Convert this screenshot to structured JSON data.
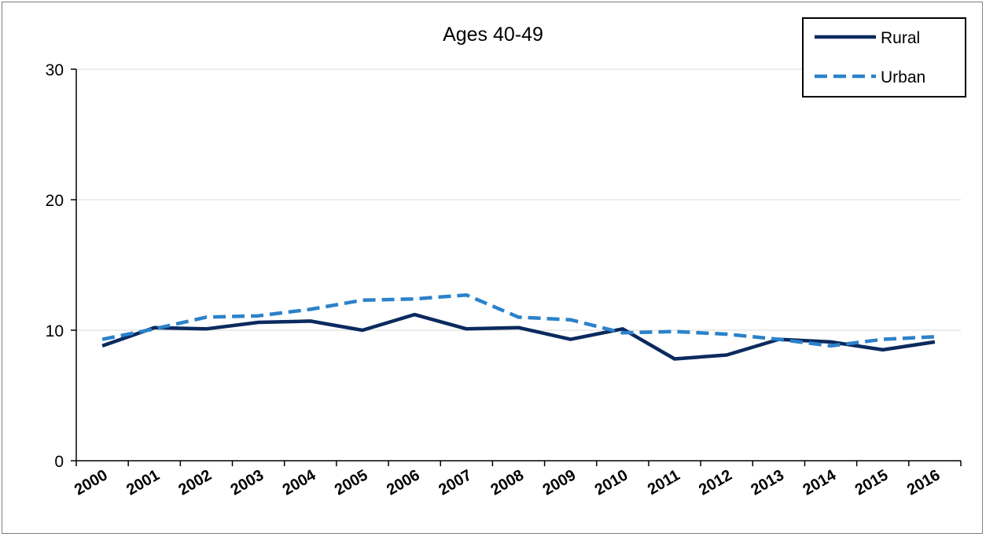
{
  "chart_data": {
    "type": "line",
    "title": "Ages 40-49",
    "xlabel": "",
    "ylabel": "",
    "categories": [
      "2000",
      "2001",
      "2002",
      "2003",
      "2004",
      "2005",
      "2006",
      "2007",
      "2008",
      "2009",
      "2010",
      "2011",
      "2012",
      "2013",
      "2014",
      "2015",
      "2016"
    ],
    "ylim": [
      0,
      30
    ],
    "yticks": [
      "0",
      "10",
      "20",
      "30"
    ],
    "grid": true,
    "legend_position": "top-right",
    "series": [
      {
        "name": "Rural",
        "color": "#0b2a5e",
        "style": "solid",
        "values": [
          8.8,
          10.2,
          10.1,
          10.6,
          10.7,
          10.0,
          11.2,
          10.1,
          10.2,
          9.3,
          10.1,
          7.8,
          8.1,
          9.3,
          9.1,
          8.5,
          9.1
        ]
      },
      {
        "name": "Urban",
        "color": "#2b82c9",
        "style": "dashed",
        "values": [
          9.3,
          10.1,
          11.0,
          11.1,
          11.6,
          12.3,
          12.4,
          12.7,
          11.0,
          10.8,
          9.8,
          9.9,
          9.7,
          9.3,
          8.8,
          9.3,
          9.5
        ]
      }
    ]
  }
}
